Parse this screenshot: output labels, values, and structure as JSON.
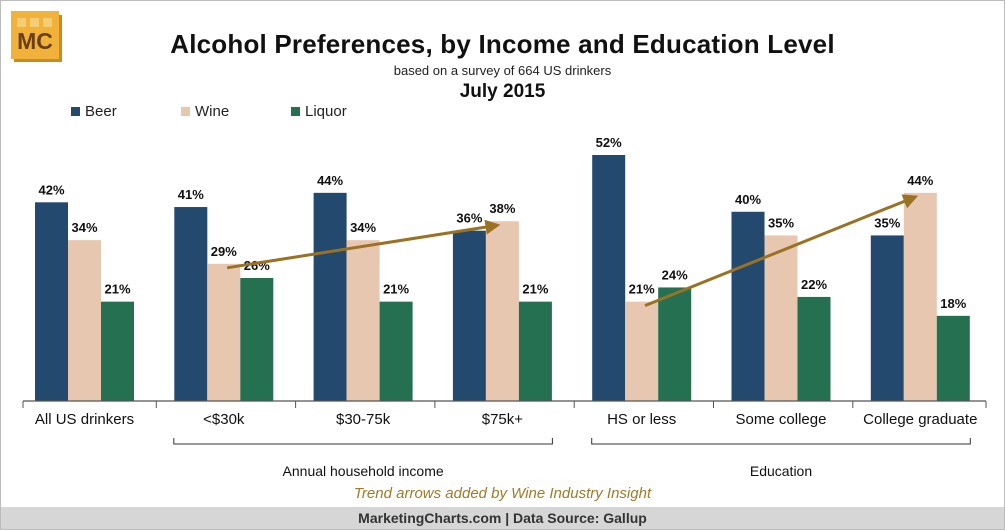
{
  "logo": {
    "text": "MC",
    "colors": {
      "bg": "#f0b23a",
      "fg": "#6b3f16",
      "shadow": "#c98a1e"
    }
  },
  "chart_data": {
    "type": "bar",
    "title": "Alcohol Preferences, by Income and Education Level",
    "subtitle": "based on a survey of 664 US drinkers",
    "date": "July 2015",
    "categories": [
      "All US drinkers",
      "<$30k",
      "$30-75k",
      "$75k+",
      "HS or less",
      "Some college",
      "College graduate"
    ],
    "series": [
      {
        "name": "Beer",
        "color": "#23496e",
        "values": [
          42,
          41,
          44,
          36,
          52,
          40,
          35
        ]
      },
      {
        "name": "Wine",
        "color": "#e8c7b0",
        "values": [
          34,
          29,
          34,
          38,
          21,
          35,
          44
        ]
      },
      {
        "name": "Liquor",
        "color": "#247050",
        "values": [
          21,
          26,
          21,
          21,
          24,
          22,
          18
        ]
      }
    ],
    "value_suffix": "%",
    "ylim": [
      0,
      52
    ],
    "grid": false,
    "legend_position": "top-left",
    "groups": [
      {
        "label": "Annual household income",
        "categories": [
          "<$30k",
          "$30-75k",
          "$75k+"
        ]
      },
      {
        "label": "Education",
        "categories": [
          "HS or less",
          "Some college",
          "College graduate"
        ]
      }
    ],
    "trend_arrows": [
      {
        "series": "Wine",
        "from_category": "<$30k",
        "to_category": "$75k+",
        "color": "#9a7224"
      },
      {
        "series": "Wine",
        "from_category": "HS or less",
        "to_category": "College graduate",
        "color": "#9a7224"
      }
    ]
  },
  "annotation": "Trend arrows added by Wine Industry Insight",
  "footer": "MarketingCharts.com | Data Source: Gallup"
}
